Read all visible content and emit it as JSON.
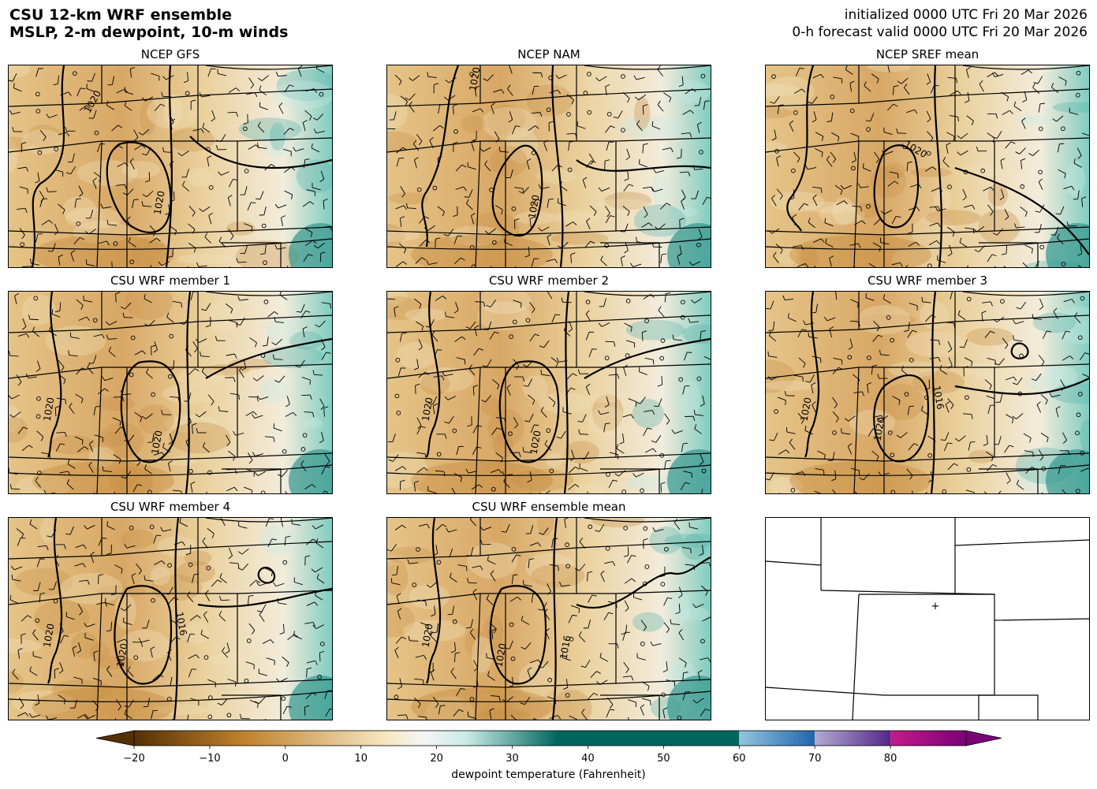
{
  "header": {
    "title_line1": "CSU 12-km WRF ensemble",
    "title_line2": "MSLP, 2-m dewpoint, 10-m winds",
    "init_line": "initialized 0000 UTC Fri 20 Mar 2026",
    "valid_line": "0-h forecast valid 0000 UTC Fri 20 Mar 2026"
  },
  "panels": [
    {
      "title": "NCEP GFS",
      "isobars": [
        "1020",
        "1020"
      ]
    },
    {
      "title": "NCEP NAM",
      "isobars": [
        "1020",
        "1020"
      ]
    },
    {
      "title": "NCEP SREF mean",
      "isobars": [
        "1020"
      ]
    },
    {
      "title": "CSU WRF member 1",
      "isobars": [
        "1020",
        "1020"
      ]
    },
    {
      "title": "CSU WRF member 2",
      "isobars": [
        "1020",
        "1020"
      ]
    },
    {
      "title": "CSU WRF member 3",
      "isobars": [
        "1020",
        "1020",
        "1016"
      ]
    },
    {
      "title": "CSU WRF member 4",
      "isobars": [
        "1020",
        "1020",
        "1016"
      ]
    },
    {
      "title": "CSU WRF ensemble mean",
      "isobars": [
        "1020",
        "1020",
        "1016"
      ]
    },
    {
      "title": "",
      "isobars": []
    }
  ],
  "colorbar": {
    "label": "dewpoint temperature (Fahrenheit)",
    "ticks": [
      "−20",
      "−10",
      "0",
      "10",
      "20",
      "30",
      "40",
      "50",
      "60",
      "70",
      "80"
    ],
    "range": [
      -20,
      90
    ],
    "colors": {
      "brown_dark": "#543005",
      "brown_mid": "#bf812d",
      "tan": "#f6e8c3",
      "white": "#f5f5f5",
      "teal_light": "#c7eae5",
      "teal_dark": "#01665e",
      "blue_light": "#92c5de",
      "blue_dark": "#2166ac",
      "purple_light": "#b2abd2",
      "purple_dark": "#542788",
      "magenta": "#c51b8a",
      "magenta_dark": "#7a0177"
    }
  }
}
